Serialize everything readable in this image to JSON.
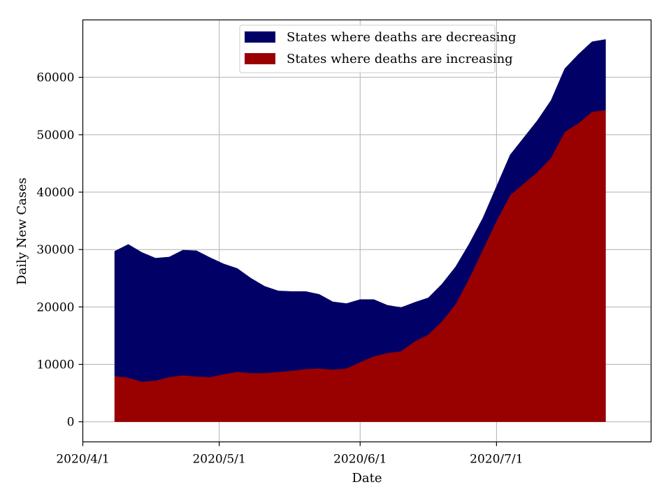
{
  "chart_data": {
    "type": "area",
    "stacked": true,
    "title": "",
    "xlabel": "Date",
    "ylabel": "Daily New Cases",
    "xlim": [
      "2020-04-01",
      "2020-08-04"
    ],
    "ylim": [
      -3500,
      70000
    ],
    "x_ticks": [
      {
        "date": "2020-04-01",
        "label": "2020/4/1"
      },
      {
        "date": "2020-05-01",
        "label": "2020/5/1"
      },
      {
        "date": "2020-06-01",
        "label": "2020/6/1"
      },
      {
        "date": "2020-07-01",
        "label": "2020/7/1"
      }
    ],
    "y_ticks": [
      0,
      10000,
      20000,
      30000,
      40000,
      50000,
      60000
    ],
    "grid": true,
    "legend_position": "top-center",
    "x": [
      "2020-04-08",
      "2020-04-11",
      "2020-04-14",
      "2020-04-17",
      "2020-04-20",
      "2020-04-23",
      "2020-04-26",
      "2020-04-29",
      "2020-05-02",
      "2020-05-05",
      "2020-05-08",
      "2020-05-11",
      "2020-05-14",
      "2020-05-17",
      "2020-05-20",
      "2020-05-23",
      "2020-05-26",
      "2020-05-29",
      "2020-06-01",
      "2020-06-04",
      "2020-06-07",
      "2020-06-10",
      "2020-06-13",
      "2020-06-16",
      "2020-06-19",
      "2020-06-22",
      "2020-06-25",
      "2020-06-28",
      "2020-07-01",
      "2020-07-04",
      "2020-07-07",
      "2020-07-10",
      "2020-07-13",
      "2020-07-16",
      "2020-07-19",
      "2020-07-22",
      "2020-07-25"
    ],
    "series": [
      {
        "name": "States where deaths are increasing",
        "color": "#990000",
        "values": [
          8000,
          7700,
          7000,
          7200,
          7800,
          8100,
          7900,
          7800,
          8300,
          8700,
          8500,
          8500,
          8700,
          8900,
          9200,
          9300,
          9100,
          9300,
          10400,
          11400,
          12000,
          12300,
          14000,
          15200,
          17500,
          20500,
          25000,
          30000,
          35000,
          39500,
          41500,
          43500,
          46000,
          50500,
          52000,
          54000,
          54300
        ]
      },
      {
        "name": "States where deaths are decreasing",
        "color": "#000066",
        "values": [
          21700,
          23200,
          22500,
          21300,
          20900,
          21800,
          21900,
          20800,
          19200,
          18000,
          16500,
          15100,
          14100,
          13800,
          13500,
          12900,
          11800,
          11300,
          10900,
          9900,
          8300,
          7600,
          6800,
          6400,
          6500,
          6500,
          6000,
          5500,
          6000,
          7000,
          8000,
          9000,
          10000,
          11000,
          12000,
          12200,
          12300
        ]
      }
    ]
  }
}
